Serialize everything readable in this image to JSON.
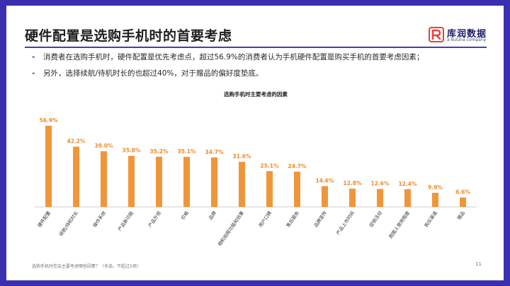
{
  "slide": {
    "title": "硬件配置是选购手机时的首要考虑",
    "logo_text": "库润数据",
    "logo_sub": "a kuluna company",
    "bullets": [
      "消费者在选购手机时，硬件配置是优先考虑点，超过56.9%的消费者认为手机硬件配置是购买手机的首要考虑因素；",
      "另外，选择续航/待机时长的也超过40%，对于赠品的偏好度垫底。"
    ],
    "bullet_marker": "-",
    "footnote": "选购手机时您会主要考虑哪些因素？（多选，不超过5项）",
    "page_number": "11"
  },
  "colors": {
    "accent": "#4a3ab8",
    "bar": "#f0963a",
    "label": "#f08a2a",
    "frame": "#3a2fb0",
    "logo_red": "#e8403a"
  },
  "chart_data": {
    "type": "bar",
    "title": "选购手机时主要考虑的因素",
    "categories": [
      "硬件配置",
      "续航/待机时长",
      "操作系统",
      "产品新功能",
      "产品外观",
      "价格",
      "品牌",
      "相机拍照功能和效果",
      "用户口碑",
      "售后服务",
      "品牌宣传",
      "产品上市时间",
      "促销活动",
      "周围人使用程度",
      "购买渠道",
      "赠品"
    ],
    "values": [
      56.9,
      42.2,
      39.0,
      35.8,
      35.2,
      35.1,
      34.7,
      31.6,
      25.1,
      24.7,
      14.6,
      12.8,
      12.6,
      12.4,
      9.9,
      6.6
    ],
    "value_labels": [
      "56.9%",
      "42.2%",
      "39.0%",
      "35.8%",
      "35.2%",
      "35.1%",
      "34.7%",
      "31.6%",
      "25.1%",
      "24.7%",
      "14.6%",
      "12.8%",
      "12.6%",
      "12.4%",
      "9.9%",
      "6.6%"
    ],
    "xlabel": "",
    "ylabel": "",
    "ylim": [
      0,
      60
    ],
    "grid": false,
    "legend": "none"
  }
}
